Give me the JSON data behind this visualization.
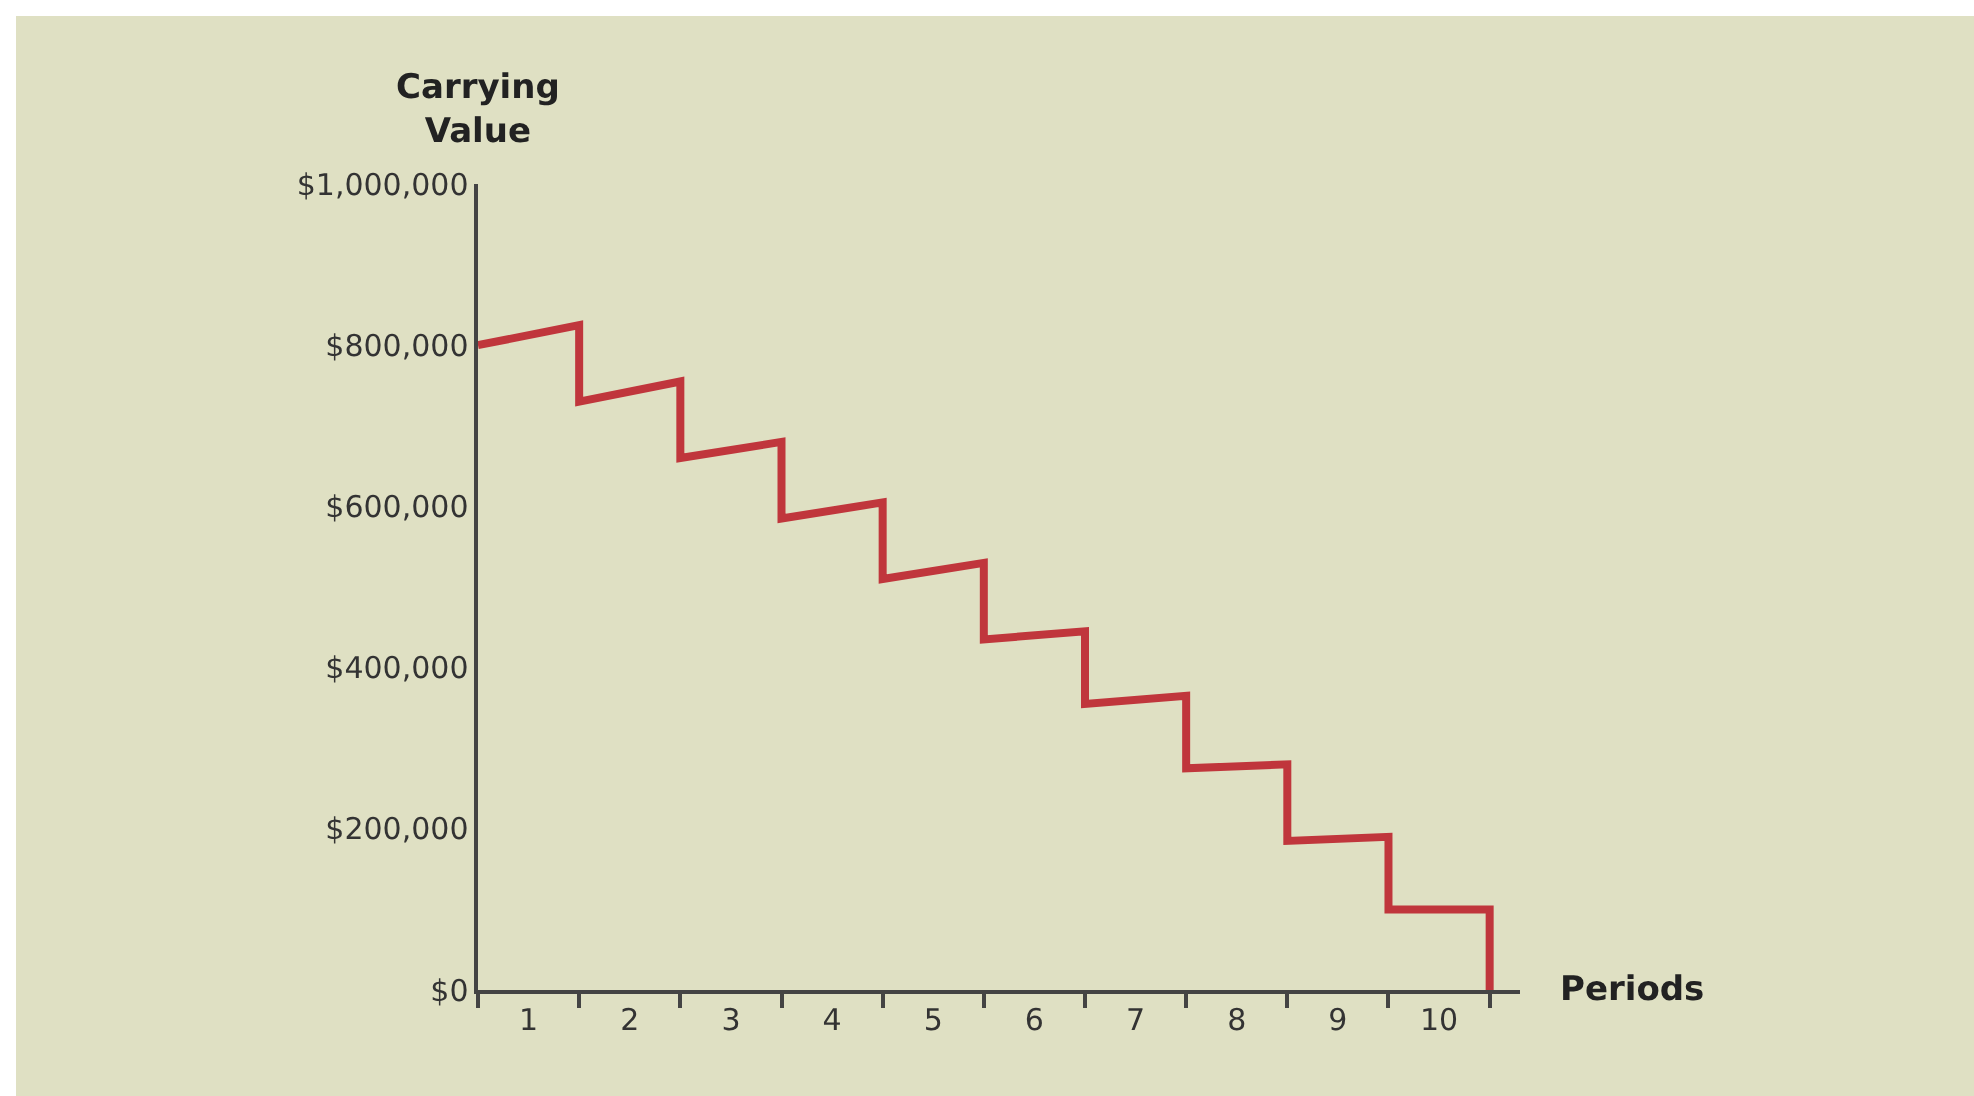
{
  "chart_data": {
    "type": "line",
    "xlabel": "Periods",
    "ylabel": "Carrying Value",
    "xlim": [
      0,
      10.3
    ],
    "xticks": [
      {
        "value": 0,
        "label": null
      },
      {
        "value": 0.5,
        "label": "1"
      },
      {
        "value": 1,
        "label": null
      },
      {
        "value": 1.5,
        "label": "2"
      },
      {
        "value": 2,
        "label": null
      },
      {
        "value": 2.5,
        "label": "3"
      },
      {
        "value": 3,
        "label": null
      },
      {
        "value": 3.5,
        "label": "4"
      },
      {
        "value": 4,
        "label": null
      },
      {
        "value": 4.5,
        "label": "5"
      },
      {
        "value": 5,
        "label": null
      },
      {
        "value": 5.5,
        "label": "6"
      },
      {
        "value": 6,
        "label": null
      },
      {
        "value": 6.5,
        "label": "7"
      },
      {
        "value": 7,
        "label": null
      },
      {
        "value": 7.5,
        "label": "8"
      },
      {
        "value": 8,
        "label": null
      },
      {
        "value": 8.5,
        "label": "9"
      },
      {
        "value": 9,
        "label": null
      },
      {
        "value": 9.5,
        "label": "10"
      },
      {
        "value": 10,
        "label": null
      }
    ],
    "ylim": [
      0,
      1000000
    ],
    "yticks": [
      {
        "value": 0,
        "label": "$0"
      },
      {
        "value": 200000,
        "label": "$200,000"
      },
      {
        "value": 400000,
        "label": "$400,000"
      },
      {
        "value": 600000,
        "label": "$600,000"
      },
      {
        "value": 800000,
        "label": "$800,000"
      },
      {
        "value": 1000000,
        "label": "$1,000,000"
      }
    ],
    "grid": false,
    "marker": "none",
    "line_style": "solid",
    "series": [
      {
        "color": "#c0363c",
        "x": [
          0,
          1,
          1,
          2,
          2,
          3,
          3,
          4,
          4,
          5,
          5,
          6,
          6,
          7,
          7,
          8,
          8,
          9,
          9,
          10,
          10
        ],
        "values": [
          800000,
          825000,
          730000,
          755000,
          660000,
          680000,
          585000,
          605000,
          510000,
          530000,
          435000,
          445000,
          355000,
          365000,
          275000,
          280000,
          185000,
          190000,
          100000,
          100000,
          0
        ]
      }
    ]
  }
}
